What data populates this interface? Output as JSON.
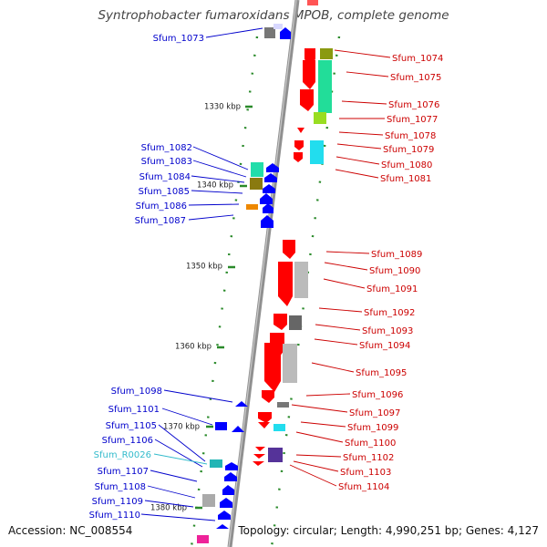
{
  "title": "Syntrophobacter fumaroxidans MPOB, complete genome",
  "footer": {
    "accession": "Accession: NC_008554",
    "topology": "Topology: circular; Length: 4,990,251 bp; Genes: 4,127"
  },
  "colors": {
    "forward": "#ff0000",
    "reverse": "#0000ff",
    "rna": "#33bbcc",
    "backbone": "#909090",
    "tick": "#2a8a2a"
  },
  "kbp_ticks": [
    "1330 kbp",
    "1340 kbp",
    "1350 kbp",
    "1360 kbp",
    "1370 kbp",
    "1380 kbp"
  ],
  "left_labels": [
    "Sfum_1073",
    "Sfum_1082",
    "Sfum_1083",
    "Sfum_1084",
    "Sfum_1085",
    "Sfum_1086",
    "Sfum_1087",
    "Sfum_1098",
    "Sfum_1101",
    "Sfum_1105",
    "Sfum_1106",
    "Sfum_R0026",
    "Sfum_1107",
    "Sfum_1108",
    "Sfum_1109",
    "Sfum_1110"
  ],
  "right_labels": [
    "Sfum_1074",
    "Sfum_1075",
    "Sfum_1076",
    "Sfum_1077",
    "Sfum_1078",
    "Sfum_1079",
    "Sfum_1080",
    "Sfum_1081",
    "Sfum_1089",
    "Sfum_1090",
    "Sfum_1091",
    "Sfum_1092",
    "Sfum_1093",
    "Sfum_1094",
    "Sfum_1095",
    "Sfum_1096",
    "Sfum_1097",
    "Sfum_1099",
    "Sfum_1100",
    "Sfum_1102",
    "Sfum_1103",
    "Sfum_1104"
  ]
}
